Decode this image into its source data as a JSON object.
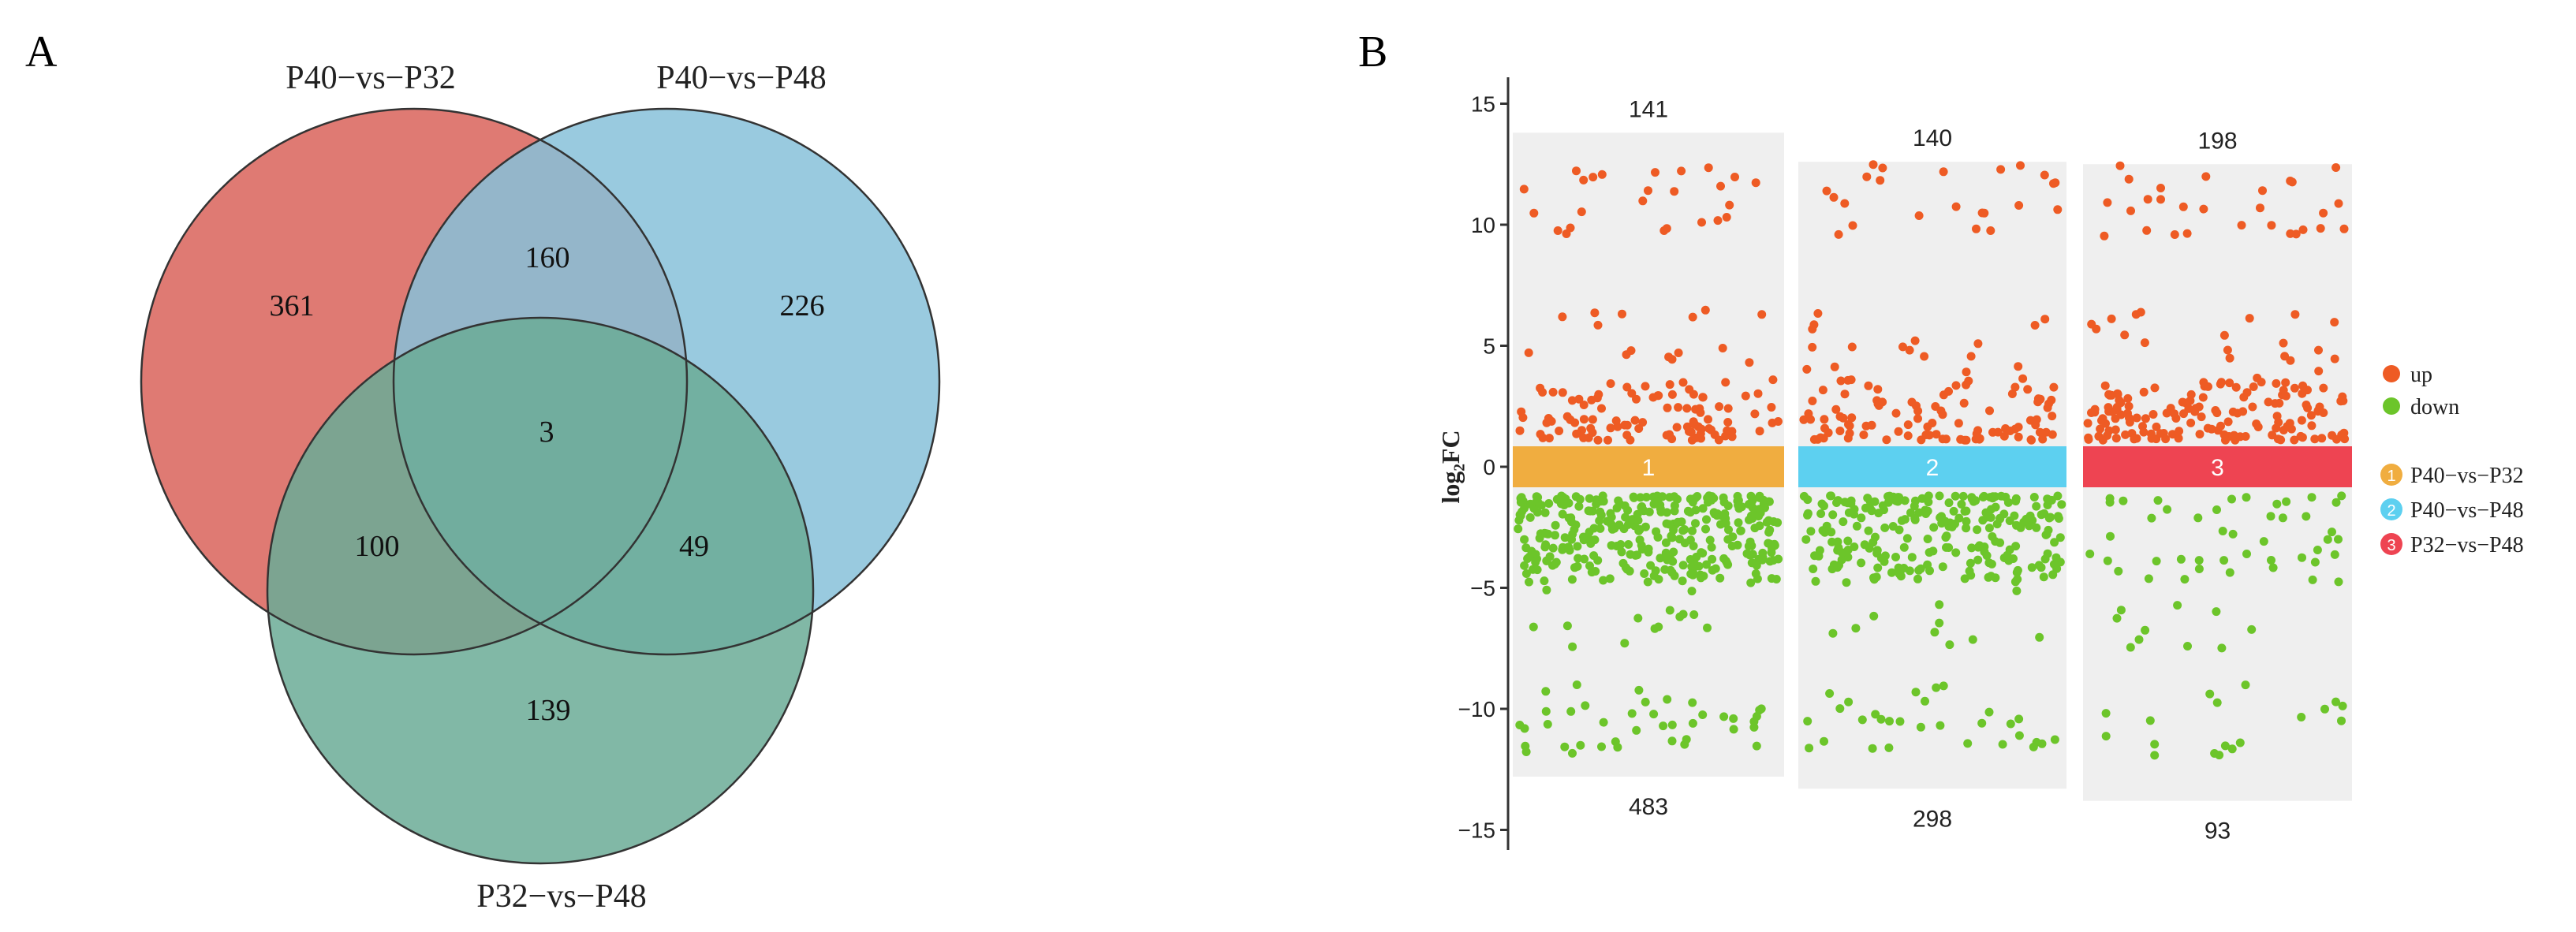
{
  "chart_data": [
    {
      "type": "venn",
      "panel_label": "A",
      "sets": [
        {
          "name": "P40−vs−P32",
          "color": "#dc6b64"
        },
        {
          "name": "P40−vs−P48",
          "color": "#87c1d9"
        },
        {
          "name": "P32−vs−P48",
          "color": "#6bab97"
        }
      ],
      "regions": [
        {
          "sets": [
            "P40-vs-P32"
          ],
          "value": "361"
        },
        {
          "sets": [
            "P40-vs-P48"
          ],
          "value": "226"
        },
        {
          "sets": [
            "P32-vs-P48"
          ],
          "value": "139"
        },
        {
          "sets": [
            "P40-vs-P32",
            "P40-vs-P48"
          ],
          "value": "160"
        },
        {
          "sets": [
            "P40-vs-P32",
            "P32-vs-P48"
          ],
          "value": "100"
        },
        {
          "sets": [
            "P40-vs-P48",
            "P32-vs-P48"
          ],
          "value": "49"
        },
        {
          "sets": [
            "P40-vs-P32",
            "P40-vs-P48",
            "P32-vs-P48"
          ],
          "value": "3"
        }
      ]
    },
    {
      "type": "scatter",
      "panel_label": "B",
      "ylabel": "log₂FC",
      "ylim": [
        -15.5,
        16
      ],
      "yticks": [
        "15",
        "10",
        "5",
        "0",
        "−5",
        "−10",
        "−15"
      ],
      "groups": [
        {
          "id": "1",
          "name": "P40−vs−P32",
          "color": "#f0ad40",
          "up_count": "141",
          "down_count": "483",
          "range": [
            -12.8,
            13.8
          ]
        },
        {
          "id": "2",
          "name": "P40−vs−P48",
          "color": "#5dd0f0",
          "up_count": "140",
          "down_count": "298",
          "range": [
            -13.3,
            12.6
          ]
        },
        {
          "id": "3",
          "name": "P32−vs−P48",
          "color": "#ee4452",
          "up_count": "198",
          "down_count": "93",
          "range": [
            -13.8,
            12.5
          ]
        }
      ],
      "legend": [
        {
          "label": "up",
          "color": "#ee5b24"
        },
        {
          "label": "down",
          "color": "#6cc52a"
        }
      ],
      "series_colors": {
        "up": "#ee5b24",
        "down": "#6cc52a",
        "panel_bg": "#efefef"
      }
    }
  ]
}
